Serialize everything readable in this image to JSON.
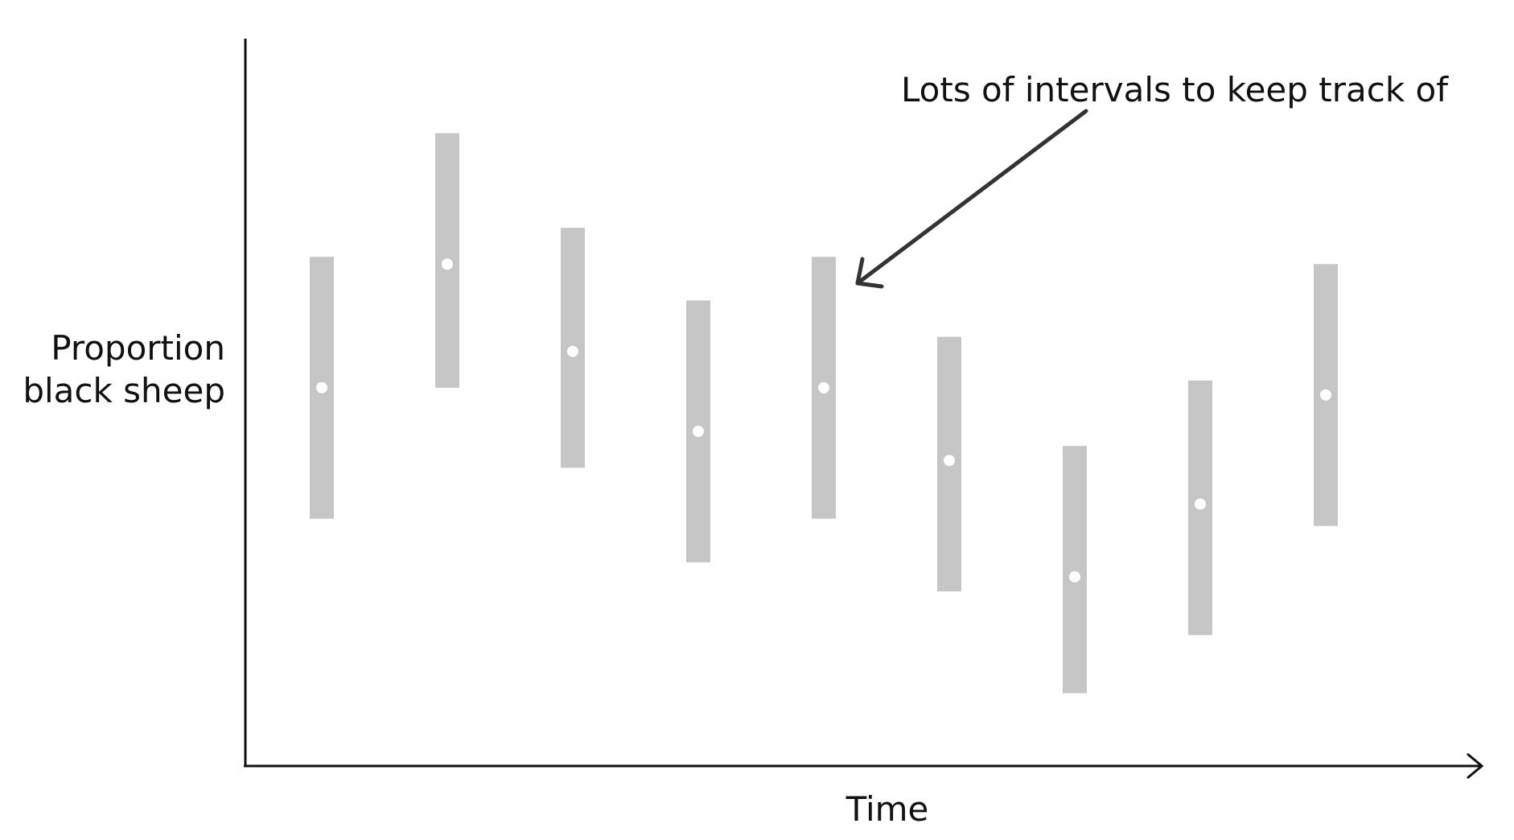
{
  "chart_data": {
    "type": "scatter",
    "subtype": "interval-plot",
    "xlabel": "Time",
    "ylabel_lines": [
      "Proportion",
      "black sheep"
    ],
    "annotation": "Lots of intervals to keep track of",
    "axis_ticks": false,
    "grid": false,
    "ylim": [
      0,
      1
    ],
    "intervals": [
      {
        "x": 1,
        "estimate": 0.52,
        "lower": 0.34,
        "upper": 0.7
      },
      {
        "x": 2,
        "estimate": 0.69,
        "lower": 0.52,
        "upper": 0.87
      },
      {
        "x": 3,
        "estimate": 0.57,
        "lower": 0.41,
        "upper": 0.74
      },
      {
        "x": 4,
        "estimate": 0.46,
        "lower": 0.28,
        "upper": 0.64
      },
      {
        "x": 5,
        "estimate": 0.52,
        "lower": 0.34,
        "upper": 0.7
      },
      {
        "x": 6,
        "estimate": 0.42,
        "lower": 0.24,
        "upper": 0.59
      },
      {
        "x": 7,
        "estimate": 0.26,
        "lower": 0.1,
        "upper": 0.44
      },
      {
        "x": 8,
        "estimate": 0.36,
        "lower": 0.18,
        "upper": 0.53
      },
      {
        "x": 9,
        "estimate": 0.51,
        "lower": 0.33,
        "upper": 0.69
      }
    ],
    "colors": {
      "interval": "#c6c6c6",
      "estimate": "#ffffff",
      "axis": "#111111",
      "annotation_arrow": "#333333"
    }
  }
}
